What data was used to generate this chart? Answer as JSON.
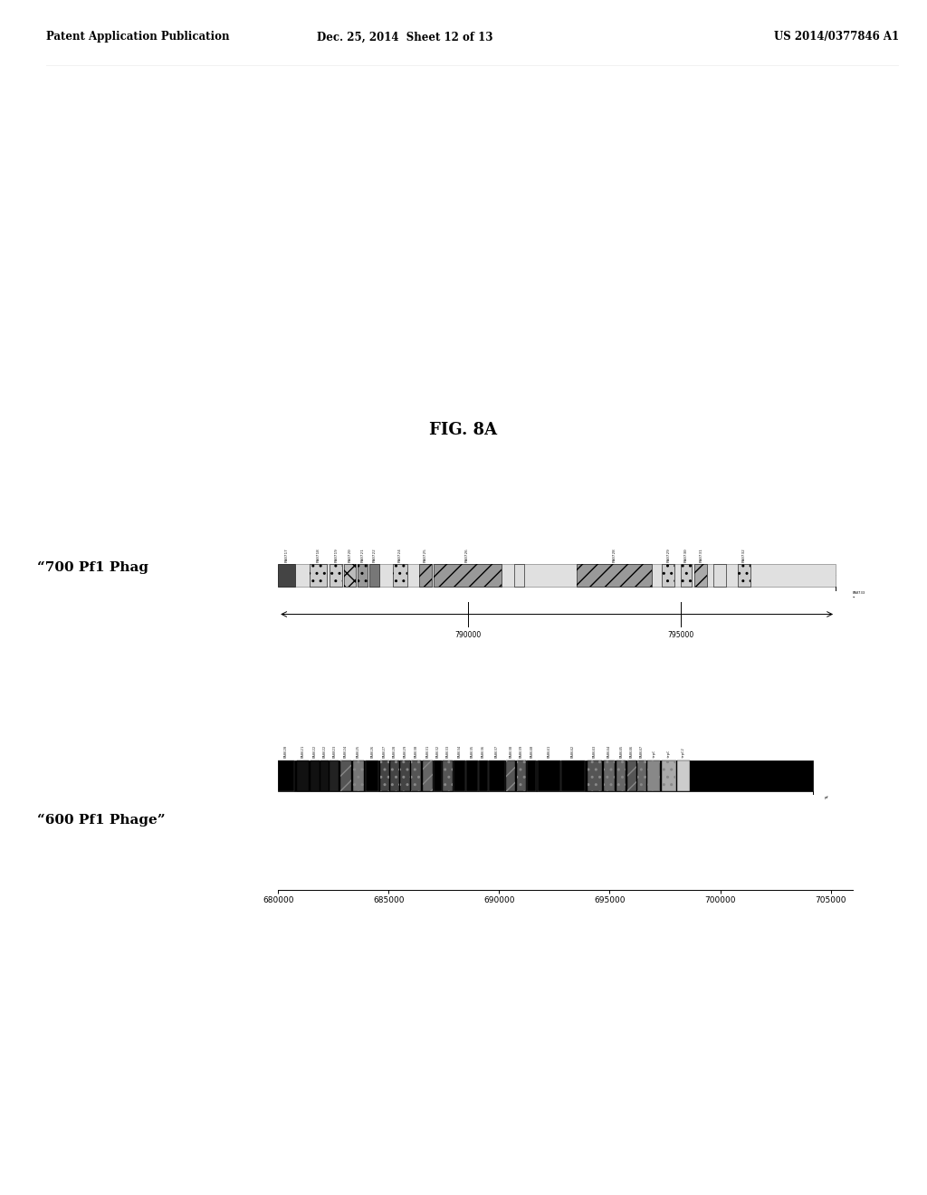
{
  "title": "FIG. 8A",
  "header_left": "Patent Application Publication",
  "header_center": "Dec. 25, 2014  Sheet 12 of 13",
  "header_right": "US 2014/0377846 A1",
  "label_700": "“700 Pf1 Phag",
  "label_600": "“600 Pf1 Phage”",
  "scale_700_ticks": [
    790000,
    795000
  ],
  "scale_600_ticks": [
    680000,
    685000,
    690000,
    695000,
    700000,
    705000
  ],
  "bg_color": "#ffffff"
}
